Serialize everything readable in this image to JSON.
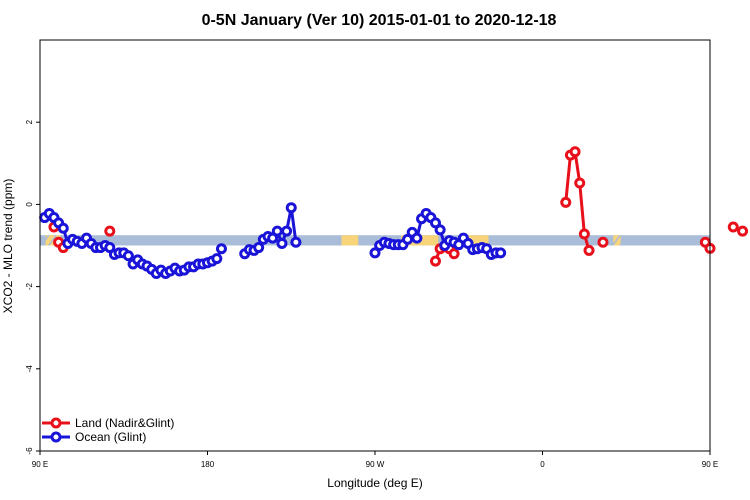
{
  "chart_data": {
    "type": "line",
    "title": "0-5N January (Ver 10)   2015-01-01 to 2020-12-18",
    "xlabel": "Longitude (deg E)",
    "ylabel": "XCO2 - MLO trend (ppm)",
    "xlim": [
      90,
      450
    ],
    "ylim": [
      -6,
      4
    ],
    "x_ticks": [
      {
        "value": 90,
        "label": "90 E"
      },
      {
        "value": 180,
        "label": "180"
      },
      {
        "value": 270,
        "label": "90 W"
      },
      {
        "value": 360,
        "label": "0"
      },
      {
        "value": 450,
        "label": "90 E"
      },
      {
        "value": 540,
        "label": "180"
      }
    ],
    "y_ticks": [
      {
        "value": -6,
        "label": "-6"
      },
      {
        "value": -4,
        "label": "-4"
      },
      {
        "value": -2,
        "label": "-2"
      },
      {
        "value": 0,
        "label": "0"
      },
      {
        "value": 2,
        "label": "2"
      }
    ],
    "grid": false,
    "legend_position": "bottom-left",
    "background_band": {
      "y_range": [
        -1.0,
        -0.75
      ],
      "ocean_color": "#a9bcd8",
      "land_color": "#f7d47a",
      "land_segments": [
        [
          93,
          101
        ],
        [
          252,
          261
        ],
        [
          284,
          304
        ],
        [
          317,
          331
        ],
        [
          398,
          402
        ]
      ],
      "hatched_segments": [
        [
          93,
          101
        ],
        [
          398,
          402
        ]
      ]
    },
    "series": [
      {
        "name": "Land (Nadir&Glint)",
        "color": "#e8101a",
        "segments": [
          [
            [
              100,
              -0.92
            ],
            [
              102.5,
              -1.05
            ]
          ],
          [
            [
              97.5,
              -0.55
            ]
          ],
          [
            [
              127.5,
              -0.65
            ]
          ],
          [
            [
              302.5,
              -1.38
            ],
            [
              305,
              -1.08
            ],
            [
              307.5,
              -1.03
            ],
            [
              310,
              -1.08
            ],
            [
              312.5,
              -1.2
            ]
          ],
          [
            [
              372.5,
              0.05
            ],
            [
              375,
              1.2
            ],
            [
              377.5,
              1.28
            ],
            [
              380,
              0.52
            ],
            [
              382.5,
              -0.72
            ],
            [
              385,
              -1.12
            ]
          ],
          [
            [
              392.5,
              -0.92
            ]
          ],
          [
            [
              447.5,
              -0.92
            ],
            [
              450,
              -1.07
            ]
          ],
          [
            [
              462.5,
              -0.55
            ]
          ],
          [
            [
              467.5,
              -0.65
            ]
          ]
        ]
      },
      {
        "name": "Ocean (Glint)",
        "color": "#1a14d8",
        "points": [
          [
            92.5,
            -0.32
          ],
          [
            95,
            -0.22
          ],
          [
            97.5,
            -0.32
          ],
          [
            100,
            -0.45
          ],
          [
            102.5,
            -0.58
          ],
          [
            105,
            -0.95
          ],
          [
            107.5,
            -0.85
          ],
          [
            110,
            -0.9
          ],
          [
            112.5,
            -0.95
          ],
          [
            115,
            -0.82
          ],
          [
            117.5,
            -0.95
          ],
          [
            120,
            -1.05
          ],
          [
            122.5,
            -1.05
          ],
          [
            125,
            -1.0
          ],
          [
            127.5,
            -1.05
          ],
          [
            130,
            -1.22
          ],
          [
            132.5,
            -1.18
          ],
          [
            135,
            -1.18
          ],
          [
            137.5,
            -1.25
          ],
          [
            140,
            -1.45
          ],
          [
            142.5,
            -1.35
          ],
          [
            145,
            -1.45
          ],
          [
            147.5,
            -1.5
          ],
          [
            150,
            -1.58
          ],
          [
            152.5,
            -1.68
          ],
          [
            155,
            -1.6
          ],
          [
            157.5,
            -1.68
          ],
          [
            160,
            -1.62
          ],
          [
            162.5,
            -1.55
          ],
          [
            165,
            -1.62
          ],
          [
            167.5,
            -1.6
          ],
          [
            170,
            -1.52
          ],
          [
            172.5,
            -1.52
          ],
          [
            175,
            -1.45
          ],
          [
            177.5,
            -1.45
          ],
          [
            180,
            -1.42
          ],
          [
            182.5,
            -1.38
          ],
          [
            185,
            -1.32
          ],
          [
            187.5,
            -1.08
          ],
          [
            200,
            -1.2
          ],
          [
            202.5,
            -1.1
          ],
          [
            205,
            -1.12
          ],
          [
            207.5,
            -1.05
          ],
          [
            210,
            -0.85
          ],
          [
            212.5,
            -0.78
          ],
          [
            215,
            -0.82
          ],
          [
            217.5,
            -0.65
          ],
          [
            220,
            -0.95
          ],
          [
            222.5,
            -0.65
          ],
          [
            225,
            -0.08
          ],
          [
            227.5,
            -0.92
          ],
          [
            270,
            -1.18
          ],
          [
            272.5,
            -1.0
          ],
          [
            275,
            -0.92
          ],
          [
            277.5,
            -0.95
          ],
          [
            280,
            -0.98
          ],
          [
            282.5,
            -0.98
          ],
          [
            285,
            -0.98
          ],
          [
            287.5,
            -0.85
          ],
          [
            290,
            -0.68
          ],
          [
            292.5,
            -0.82
          ],
          [
            295,
            -0.35
          ],
          [
            297.5,
            -0.22
          ],
          [
            300,
            -0.32
          ],
          [
            302.5,
            -0.45
          ],
          [
            305,
            -0.62
          ],
          [
            307.5,
            -1.0
          ],
          [
            310,
            -0.88
          ],
          [
            312.5,
            -0.92
          ],
          [
            315,
            -0.98
          ],
          [
            317.5,
            -0.82
          ],
          [
            320,
            -0.95
          ],
          [
            322.5,
            -1.1
          ],
          [
            325,
            -1.08
          ],
          [
            327.5,
            -1.05
          ],
          [
            330,
            -1.08
          ],
          [
            332.5,
            -1.22
          ],
          [
            335,
            -1.18
          ],
          [
            337.5,
            -1.18
          ]
        ]
      }
    ]
  }
}
